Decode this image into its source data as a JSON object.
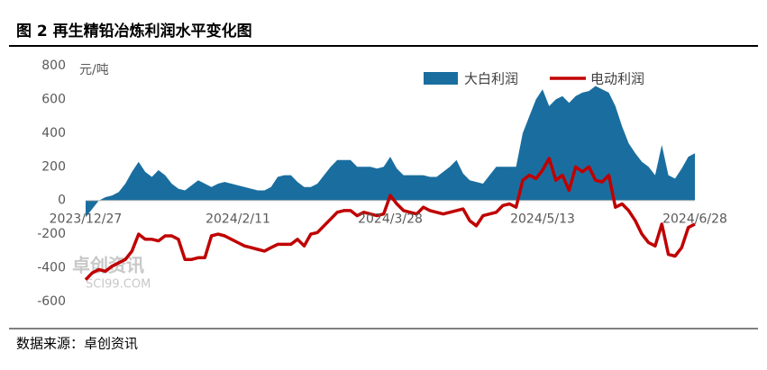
{
  "header": {
    "title": "图 2 再生精铅冶炼利润水平变化图"
  },
  "source": "数据来源：卓创资讯",
  "watermark": {
    "name": "卓创资讯",
    "site": "SCI99.COM"
  },
  "chart_data": {
    "type": "area-line",
    "y_label": "元/吨",
    "categories": [
      "2023/12/27",
      null,
      null,
      null,
      null,
      null,
      null,
      null,
      null,
      null,
      null,
      null,
      null,
      null,
      null,
      null,
      null,
      null,
      null,
      null,
      null,
      null,
      null,
      "2024/2/11",
      null,
      null,
      null,
      null,
      null,
      null,
      null,
      null,
      null,
      null,
      null,
      null,
      null,
      null,
      null,
      null,
      null,
      null,
      null,
      null,
      null,
      null,
      "2024/3/28",
      null,
      null,
      null,
      null,
      null,
      null,
      null,
      null,
      null,
      null,
      null,
      null,
      null,
      null,
      null,
      null,
      null,
      null,
      null,
      null,
      null,
      null,
      "2024/5/13",
      null,
      null,
      null,
      null,
      null,
      null,
      null,
      null,
      null,
      null,
      null,
      null,
      null,
      null,
      null,
      null,
      null,
      null,
      null,
      null,
      null,
      null,
      "2024/6/28"
    ],
    "series": [
      {
        "name": "大白利润",
        "kind": "area",
        "color": "#1a6e9f",
        "values": [
          -100,
          -50,
          0,
          20,
          30,
          50,
          100,
          170,
          230,
          170,
          140,
          180,
          150,
          100,
          70,
          60,
          90,
          120,
          100,
          80,
          100,
          110,
          100,
          90,
          80,
          70,
          60,
          60,
          80,
          140,
          150,
          150,
          110,
          80,
          80,
          100,
          150,
          200,
          240,
          240,
          240,
          200,
          200,
          200,
          190,
          200,
          260,
          190,
          150,
          150,
          150,
          150,
          140,
          140,
          170,
          200,
          240,
          160,
          120,
          110,
          100,
          150,
          200,
          200,
          200,
          200,
          400,
          500,
          600,
          660,
          560,
          600,
          620,
          580,
          620,
          640,
          650,
          680,
          660,
          640,
          560,
          440,
          340,
          280,
          230,
          200,
          150,
          330,
          150,
          130,
          190,
          260,
          280
        ]
      },
      {
        "name": "电动利润",
        "kind": "line",
        "color": "#c00000",
        "values": [
          -470,
          -430,
          -410,
          -420,
          -390,
          -370,
          -350,
          -300,
          -200,
          -230,
          -230,
          -240,
          -210,
          -210,
          -230,
          -350,
          -350,
          -340,
          -340,
          -210,
          -200,
          -210,
          -230,
          -250,
          -270,
          -280,
          -290,
          -300,
          -280,
          -260,
          -260,
          -260,
          -230,
          -270,
          -200,
          -190,
          -150,
          -110,
          -70,
          -60,
          -60,
          -90,
          -70,
          -80,
          -90,
          -80,
          30,
          -20,
          -60,
          -70,
          -80,
          -40,
          -60,
          -70,
          -80,
          -70,
          -60,
          -50,
          -120,
          -150,
          -90,
          -80,
          -70,
          -30,
          -20,
          -40,
          120,
          150,
          130,
          180,
          250,
          120,
          150,
          60,
          200,
          170,
          200,
          120,
          110,
          150,
          -40,
          -20,
          -60,
          -120,
          -200,
          -250,
          -270,
          -140,
          -320,
          -330,
          -280,
          -160,
          -140
        ]
      }
    ],
    "ylim": [
      -600,
      800
    ],
    "yticks": [
      -600,
      -400,
      -200,
      0,
      200,
      400,
      600,
      800
    ],
    "legend": "top-right"
  }
}
